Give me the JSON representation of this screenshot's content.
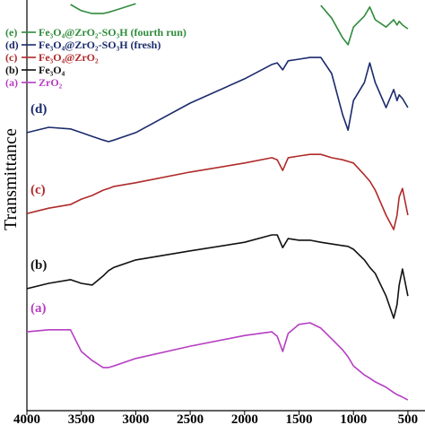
{
  "chart_data": {
    "type": "line",
    "y_label": "Transmittance",
    "x": [
      4000,
      3800,
      3600,
      3500,
      3400,
      3300,
      3250,
      3200,
      3000,
      2500,
      2000,
      1750,
      1700,
      1650,
      1600,
      1500,
      1400,
      1300,
      1200,
      1100,
      1050,
      1000,
      900,
      850,
      800,
      700,
      630,
      600,
      580,
      550,
      500
    ],
    "xlim": [
      4000,
      450
    ],
    "ylim": [
      0,
      100
    ],
    "xticks": [
      4000,
      3500,
      3000,
      2500,
      2000,
      1500,
      1000,
      500
    ],
    "series": [
      {
        "label": "(e)",
        "name": "Fe₃O₄@ZrO₂-SO₃H (fourth run)",
        "color": "#2e8b3a",
        "values": [
          null,
          null,
          98.9,
          97.4,
          96.7,
          96.7,
          97.0,
          97.4,
          99.1,
          null,
          null,
          null,
          null,
          null,
          null,
          null,
          null,
          98.7,
          95.6,
          90.8,
          89.1,
          93.4,
          96.1,
          98.3,
          95.2,
          93.4,
          95.2,
          93.9,
          94.8,
          93.9,
          93.0
        ]
      },
      {
        "label": "(d)",
        "name": "Fe₃O₄@ZrO₂-SO₃H (fresh)",
        "color": "#1a2a6c",
        "values": [
          67.7,
          69.0,
          68.6,
          67.7,
          66.8,
          65.9,
          65.5,
          65.9,
          67.7,
          74.9,
          80.8,
          84.3,
          84.7,
          83.0,
          85.2,
          85.6,
          86.0,
          86.0,
          82.1,
          72.1,
          68.3,
          75.5,
          79.9,
          84.7,
          79.9,
          73.8,
          78.2,
          75.5,
          76.9,
          76.0,
          73.8
        ]
      },
      {
        "label": "(c)",
        "name": "Fe₃O₄@ZrO₂",
        "color": "#b02a2a",
        "values": [
          48.0,
          49.3,
          50.2,
          51.5,
          52.4,
          53.7,
          54.1,
          54.6,
          55.5,
          58.1,
          60.3,
          61.6,
          61.1,
          58.5,
          61.6,
          62.0,
          62.4,
          62.4,
          61.6,
          61.1,
          60.7,
          60.3,
          57.4,
          55.9,
          53.7,
          47.6,
          44.1,
          47.6,
          52.0,
          54.1,
          47.6
        ]
      },
      {
        "label": "(b)",
        "name": "Fe₃O₄",
        "color": "#111111",
        "values": [
          29.7,
          31.0,
          31.9,
          31.0,
          30.6,
          32.8,
          34.1,
          34.9,
          36.7,
          38.9,
          41.0,
          42.8,
          42.8,
          39.7,
          41.9,
          41.5,
          41.5,
          41.0,
          40.6,
          40.2,
          40.0,
          39.3,
          36.7,
          34.9,
          33.4,
          27.9,
          22.5,
          25.8,
          30.6,
          34.5,
          27.9
        ]
      },
      {
        "label": "(a)",
        "name": "ZrO₂",
        "color": "#b63ec2",
        "values": [
          19.2,
          19.7,
          19.7,
          14.4,
          12.2,
          10.5,
          10.5,
          10.9,
          12.7,
          15.7,
          18.3,
          19.2,
          18.1,
          14.4,
          18.8,
          21.0,
          21.4,
          20.1,
          17.5,
          14.8,
          13.1,
          10.9,
          8.7,
          7.9,
          7.0,
          5.7,
          4.4,
          3.9,
          3.7,
          3.3,
          2.6
        ]
      }
    ]
  }
}
